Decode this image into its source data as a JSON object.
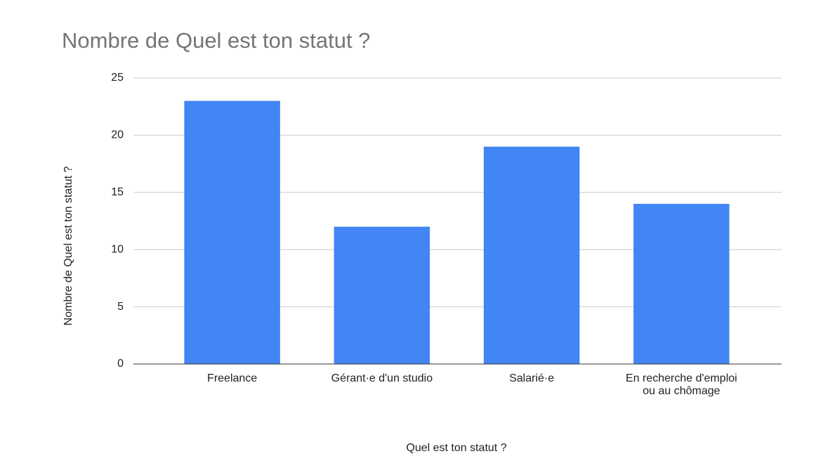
{
  "chart_data": {
    "type": "bar",
    "title": "Nombre de Quel est ton statut ?",
    "x_label": "Quel est ton statut ?",
    "y_label": "Nombre de Quel est ton statut ?",
    "categories": [
      "Freelance",
      "Gérant·e d'un studio",
      "Salarié·e",
      "En recherche d'emploi ou au chômage"
    ],
    "values": [
      23,
      12,
      19,
      14
    ],
    "color": "#4285f4",
    "ylim": [
      0,
      25
    ],
    "yticks": [
      0,
      5,
      10,
      15,
      20,
      25
    ],
    "grid": true
  }
}
